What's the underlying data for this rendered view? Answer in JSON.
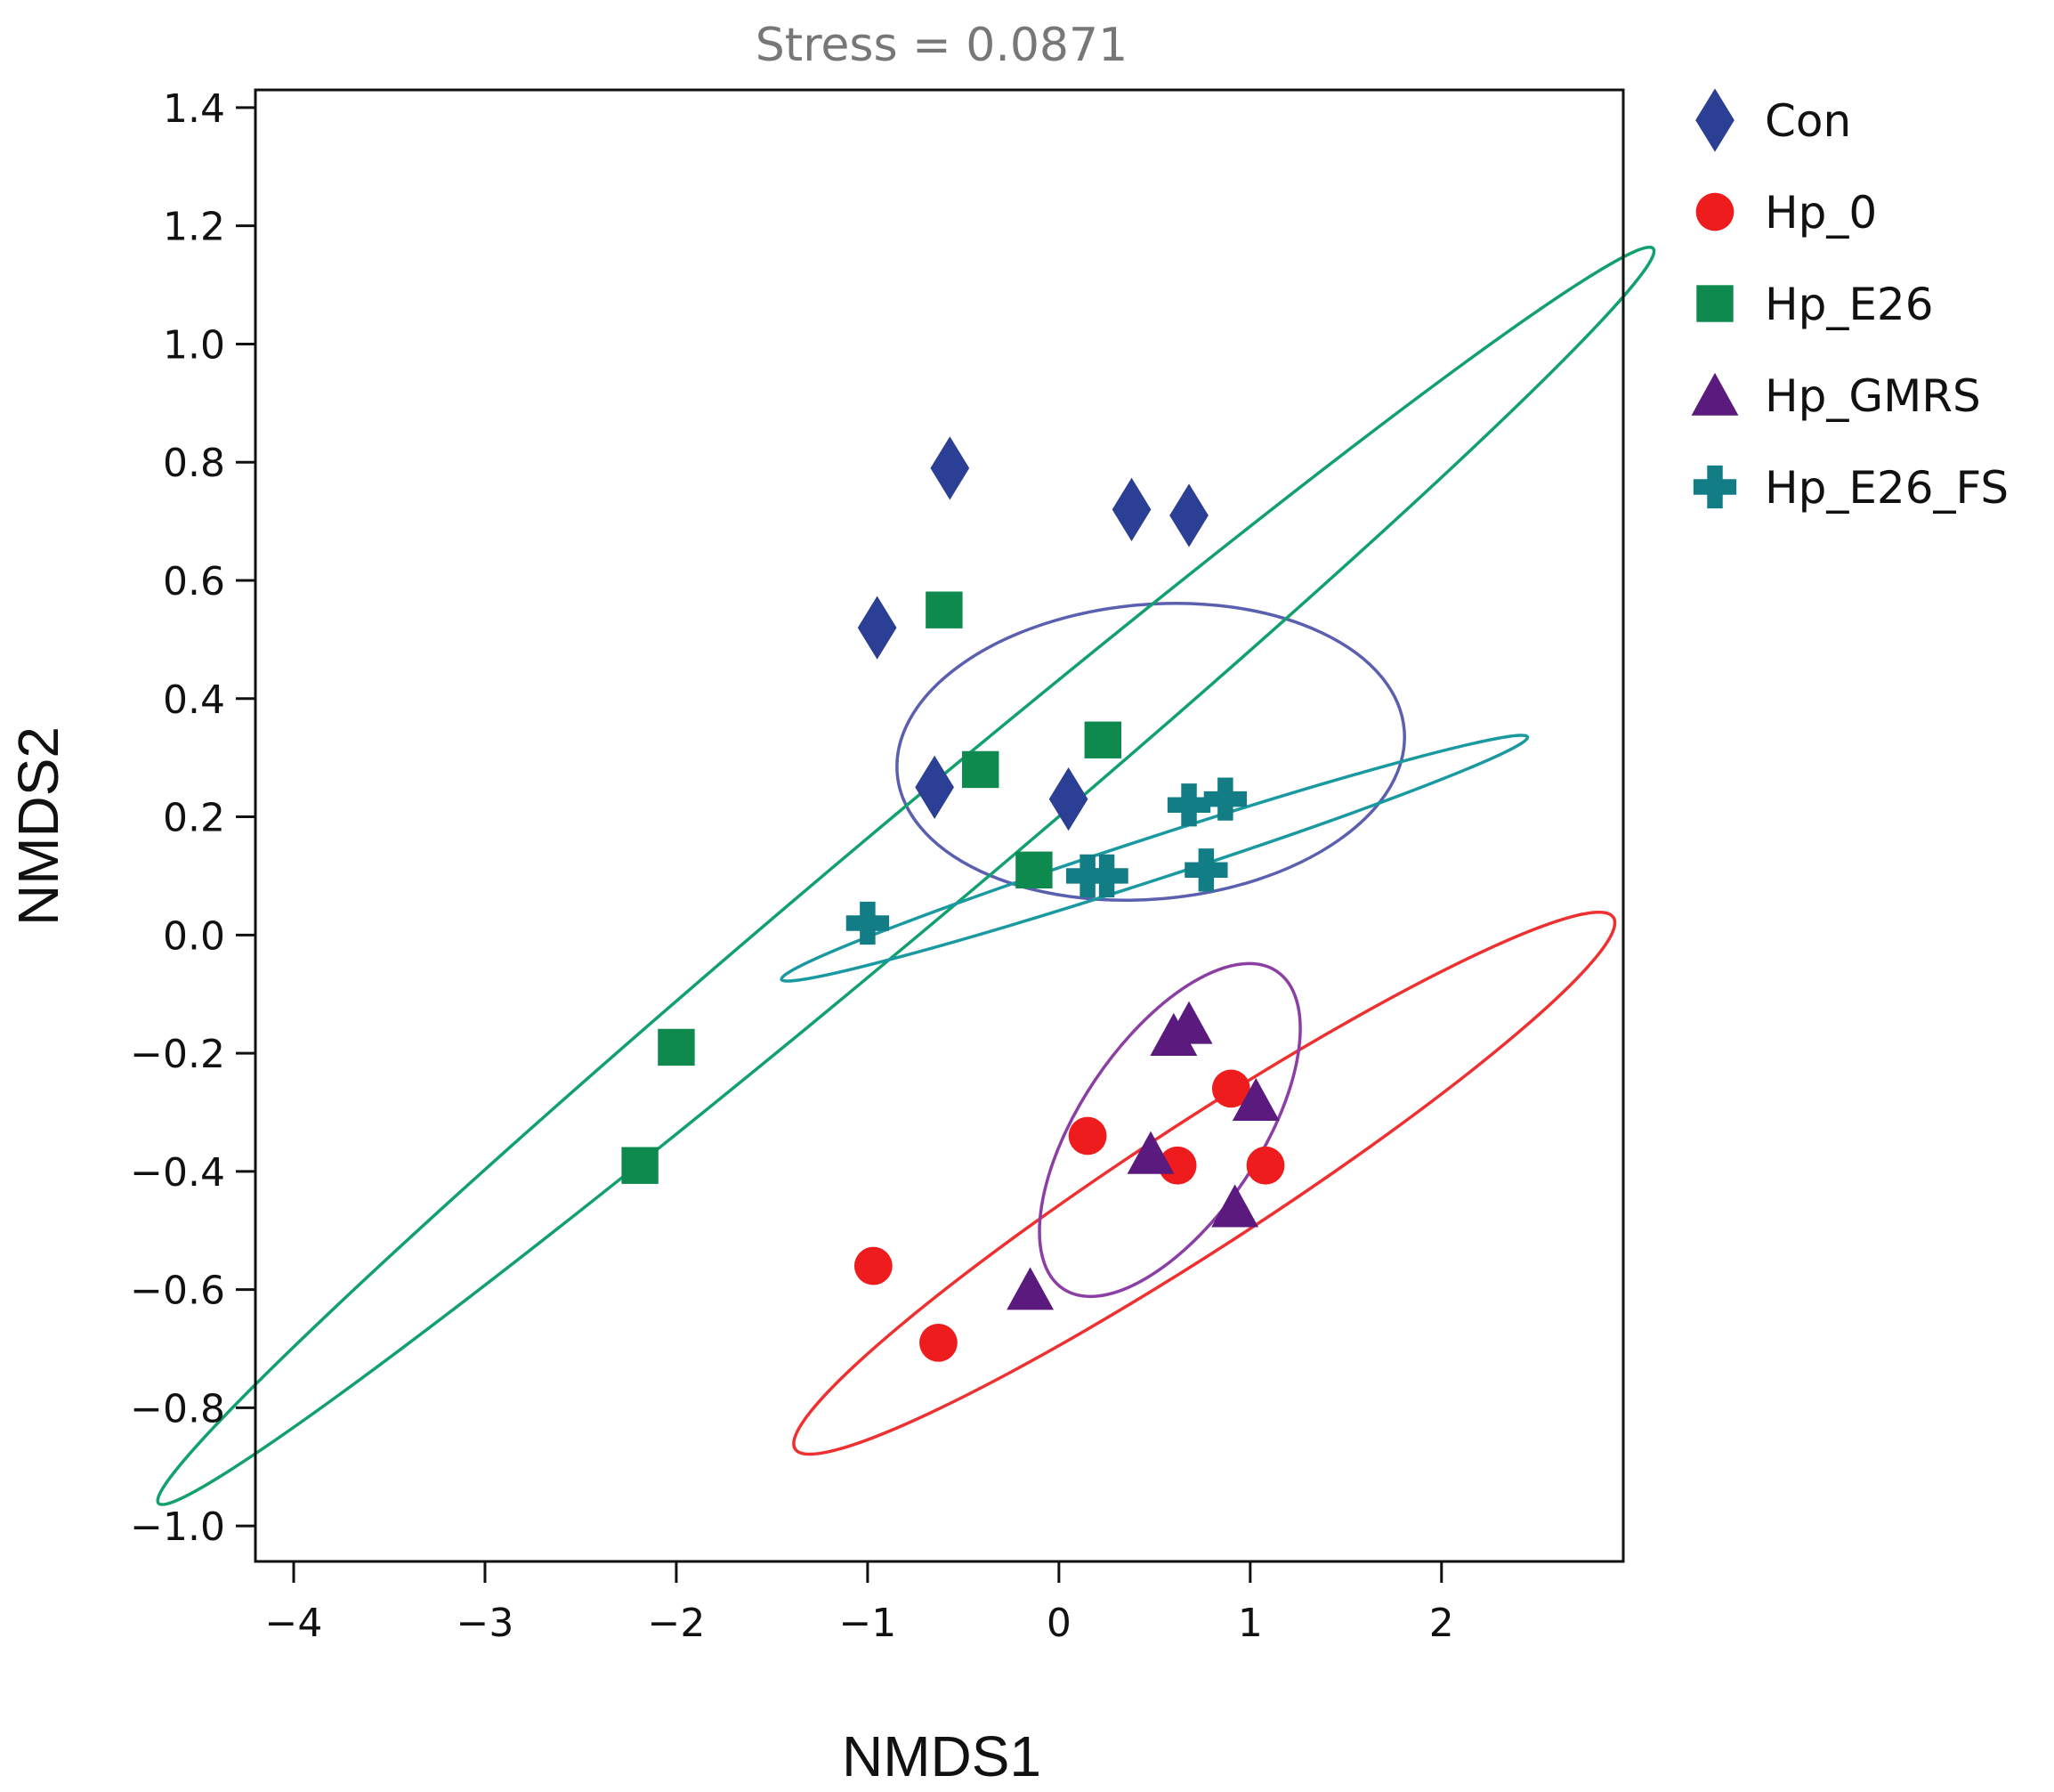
{
  "chart_data": {
    "type": "scatter",
    "title": "Stress = 0.0871",
    "xlabel": "NMDS1",
    "ylabel": "NMDS2",
    "xlim": [
      -4.2,
      2.95
    ],
    "ylim": [
      -1.06,
      1.43
    ],
    "xticks": [
      -4,
      -3,
      -2,
      -1,
      0,
      1,
      2
    ],
    "xtick_labels": [
      "−4",
      "−3",
      "−2",
      "−1",
      "0",
      "1",
      "2"
    ],
    "yticks": [
      1.4,
      1.2,
      1.0,
      0.8,
      0.6,
      0.4,
      0.2,
      0.0,
      -0.2,
      -0.4,
      -0.6,
      -0.8,
      -1.0
    ],
    "ytick_labels": [
      "1.4",
      "1.2",
      "1.0",
      "0.8",
      "0.6",
      "0.4",
      "0.2",
      "0.0",
      "−0.2",
      "−0.4",
      "−0.6",
      "−0.8",
      "−1.0"
    ],
    "legend_position": "right",
    "series": [
      {
        "name": "Con",
        "marker": "diamond",
        "color": "#2b3f94",
        "points": [
          [
            -0.57,
            0.79
          ],
          [
            0.38,
            0.72
          ],
          [
            0.68,
            0.71
          ],
          [
            -0.95,
            0.52
          ],
          [
            -0.65,
            0.25
          ],
          [
            0.05,
            0.23
          ]
        ],
        "ellipse": {
          "center": [
            0.48,
            0.31
          ],
          "semi_axis_x": 1.33,
          "semi_axis_y": 0.77,
          "rotation_deg": 5,
          "color": "#5b5fb0"
        }
      },
      {
        "name": "Hp_0",
        "marker": "circle",
        "color": "#ee1c1c",
        "points": [
          [
            0.9,
            -0.26
          ],
          [
            0.15,
            -0.34
          ],
          [
            0.62,
            -0.39
          ],
          [
            1.08,
            -0.39
          ],
          [
            -0.97,
            -0.56
          ],
          [
            -0.63,
            -0.69
          ]
        ],
        "ellipse": {
          "center": [
            0.76,
            -0.42
          ],
          "semi_axis_x": 2.55,
          "semi_axis_y": 0.33,
          "rotation_deg": 33,
          "color": "#ee3030"
        }
      },
      {
        "name": "Hp_E26",
        "marker": "square",
        "color": "#0f8a4f",
        "points": [
          [
            -0.6,
            0.55
          ],
          [
            0.23,
            0.33
          ],
          [
            -0.41,
            0.28
          ],
          [
            -0.13,
            0.11
          ],
          [
            -2.0,
            -0.19
          ],
          [
            -2.19,
            -0.39
          ]
        ],
        "ellipse": {
          "center": [
            -0.8,
            0.1
          ],
          "semi_axis_x": 5.1,
          "semi_axis_y": 0.28,
          "rotation_deg": 40,
          "color": "#12a06c"
        }
      },
      {
        "name": "Hp_GMRS",
        "marker": "triangle",
        "color": "#5b1a7e",
        "points": [
          [
            0.68,
            -0.15
          ],
          [
            0.6,
            -0.17
          ],
          [
            1.03,
            -0.28
          ],
          [
            0.48,
            -0.37
          ],
          [
            0.92,
            -0.46
          ],
          [
            -0.15,
            -0.6
          ]
        ],
        "ellipse": {
          "center": [
            0.58,
            -0.33
          ],
          "semi_axis_x": 1.0,
          "semi_axis_y": 0.47,
          "rotation_deg": 56,
          "color": "#8b3ea3"
        }
      },
      {
        "name": "Hp_E26_FS",
        "marker": "plus",
        "color": "#137d86",
        "points": [
          [
            0.87,
            0.23
          ],
          [
            0.68,
            0.22
          ],
          [
            0.15,
            0.1
          ],
          [
            0.25,
            0.1
          ],
          [
            0.77,
            0.11
          ],
          [
            -1.0,
            0.02
          ]
        ],
        "ellipse": {
          "center": [
            0.5,
            0.13
          ],
          "semi_axis_x": 2.05,
          "semi_axis_y": 0.11,
          "rotation_deg": 18,
          "color": "#1a9aa0"
        }
      }
    ]
  }
}
